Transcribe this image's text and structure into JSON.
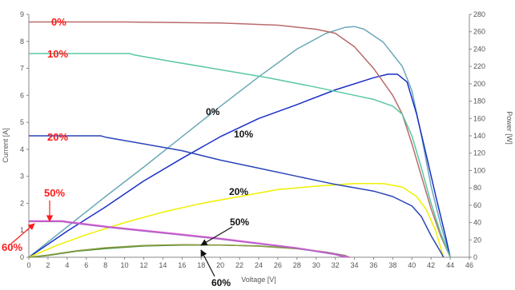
{
  "chart_data": {
    "type": "line",
    "xlabel": "Voltage [V]",
    "ylabel_left": "Current [A]",
    "ylabel_right": "Power [W]",
    "xlim": [
      0,
      46
    ],
    "ylim_left": [
      0,
      9
    ],
    "ylim_right": [
      0,
      280
    ],
    "grid": false,
    "x_ticks": [
      0,
      2,
      4,
      6,
      8,
      10,
      12,
      14,
      16,
      18,
      20,
      22,
      24,
      26,
      28,
      30,
      32,
      34,
      36,
      38,
      40,
      42,
      44,
      46
    ],
    "y_left_ticks": [
      0,
      1,
      2,
      3,
      4,
      5,
      6,
      7,
      8,
      9
    ],
    "y_right_ticks": [
      0,
      20,
      40,
      60,
      80,
      100,
      120,
      140,
      160,
      180,
      200,
      220,
      240,
      260,
      280
    ],
    "current_series": [
      {
        "shading": "0%",
        "color": "#b86a6a",
        "points": [
          [
            0,
            8.72
          ],
          [
            10,
            8.72
          ],
          [
            20,
            8.68
          ],
          [
            26,
            8.6
          ],
          [
            30,
            8.45
          ],
          [
            32,
            8.3
          ],
          [
            34,
            7.8
          ],
          [
            36,
            7.0
          ],
          [
            38,
            6.0
          ],
          [
            39,
            5.3
          ],
          [
            40,
            4.2
          ],
          [
            41,
            3.0
          ],
          [
            42,
            1.8
          ],
          [
            43,
            0.8
          ],
          [
            44,
            0.0
          ]
        ]
      },
      {
        "shading": "10%",
        "color": "#5ac8a0",
        "points": [
          [
            0,
            7.55
          ],
          [
            10.5,
            7.55
          ],
          [
            11,
            7.5
          ],
          [
            15,
            7.25
          ],
          [
            20,
            6.95
          ],
          [
            25,
            6.65
          ],
          [
            30,
            6.3
          ],
          [
            34,
            6.0
          ],
          [
            36,
            5.85
          ],
          [
            38,
            5.6
          ],
          [
            39,
            5.3
          ],
          [
            40,
            4.5
          ],
          [
            41,
            3.3
          ],
          [
            42,
            2.0
          ],
          [
            43,
            0.9
          ],
          [
            44,
            0.0
          ]
        ]
      },
      {
        "shading": "20%",
        "color": "#2a45b8",
        "points": [
          [
            0,
            4.5
          ],
          [
            7.5,
            4.5
          ],
          [
            8,
            4.45
          ],
          [
            12,
            4.2
          ],
          [
            16,
            3.95
          ],
          [
            20,
            3.6
          ],
          [
            24,
            3.3
          ],
          [
            28,
            3.0
          ],
          [
            32,
            2.7
          ],
          [
            36,
            2.45
          ],
          [
            38,
            2.25
          ],
          [
            40,
            1.9
          ],
          [
            41,
            1.5
          ],
          [
            42,
            0.8
          ],
          [
            43,
            0.2
          ],
          [
            43.3,
            0.0
          ]
        ]
      },
      {
        "shading": "50%",
        "color": "#e060d0",
        "points": [
          [
            0,
            1.35
          ],
          [
            3.5,
            1.35
          ],
          [
            4,
            1.32
          ],
          [
            8,
            1.15
          ],
          [
            12,
            1.0
          ],
          [
            16,
            0.85
          ],
          [
            20,
            0.7
          ],
          [
            24,
            0.52
          ],
          [
            28,
            0.35
          ],
          [
            32,
            0.12
          ],
          [
            33.5,
            0.0
          ]
        ]
      },
      {
        "shading": "60%",
        "color": "#b060c8",
        "points": [
          [
            0,
            1.32
          ],
          [
            3.5,
            1.32
          ],
          [
            4,
            1.29
          ],
          [
            8,
            1.12
          ],
          [
            12,
            0.97
          ],
          [
            16,
            0.82
          ],
          [
            20,
            0.67
          ],
          [
            24,
            0.5
          ],
          [
            28,
            0.33
          ],
          [
            32,
            0.1
          ],
          [
            33,
            0.0
          ]
        ]
      }
    ],
    "power_series": [
      {
        "shading": "0%",
        "color": "#6aa8b8",
        "points": [
          [
            0,
            0
          ],
          [
            4,
            35
          ],
          [
            8,
            70
          ],
          [
            12,
            104
          ],
          [
            16,
            139
          ],
          [
            20,
            174
          ],
          [
            24,
            208
          ],
          [
            28,
            240
          ],
          [
            31,
            258
          ],
          [
            33,
            265
          ],
          [
            34,
            266
          ],
          [
            35,
            263
          ],
          [
            37,
            248
          ],
          [
            39,
            220
          ],
          [
            40,
            192
          ],
          [
            41,
            140
          ],
          [
            42,
            82
          ],
          [
            43,
            38
          ],
          [
            44,
            0
          ]
        ]
      },
      {
        "shading": "10%",
        "color": "#1a2fc8",
        "points": [
          [
            0,
            0
          ],
          [
            4,
            30
          ],
          [
            8,
            58
          ],
          [
            12,
            88
          ],
          [
            16,
            114
          ],
          [
            20,
            139
          ],
          [
            24,
            160
          ],
          [
            28,
            176
          ],
          [
            32,
            193
          ],
          [
            36,
            207
          ],
          [
            37.5,
            211
          ],
          [
            38.5,
            211
          ],
          [
            39.5,
            202
          ],
          [
            40.5,
            165
          ],
          [
            41.5,
            118
          ],
          [
            42.5,
            70
          ],
          [
            43.5,
            25
          ],
          [
            44,
            0
          ]
        ]
      },
      {
        "shading": "20%",
        "color": "#f0f000",
        "points": [
          [
            0,
            0
          ],
          [
            3,
            14
          ],
          [
            6,
            26
          ],
          [
            10,
            40
          ],
          [
            14,
            52
          ],
          [
            18,
            62
          ],
          [
            22,
            70
          ],
          [
            26,
            78
          ],
          [
            30,
            82
          ],
          [
            34,
            85
          ],
          [
            37,
            85
          ],
          [
            39,
            81
          ],
          [
            40.5,
            70
          ],
          [
            41.5,
            55
          ],
          [
            42.5,
            30
          ],
          [
            43.3,
            0
          ]
        ]
      },
      {
        "shading": "50%",
        "color": "#3a8a2a",
        "points": [
          [
            0,
            0
          ],
          [
            2,
            2
          ],
          [
            5,
            7
          ],
          [
            8,
            10
          ],
          [
            12,
            13
          ],
          [
            16,
            14
          ],
          [
            20,
            14
          ],
          [
            24,
            13
          ],
          [
            28,
            10
          ],
          [
            31,
            6
          ],
          [
            33,
            2
          ],
          [
            33.5,
            0
          ]
        ]
      },
      {
        "shading": "60%",
        "color": "#8a9a40",
        "points": [
          [
            0,
            0
          ],
          [
            2,
            2.5
          ],
          [
            5,
            7.5
          ],
          [
            8,
            11
          ],
          [
            12,
            13.5
          ],
          [
            16,
            14.5
          ],
          [
            20,
            14.2
          ],
          [
            24,
            12.8
          ],
          [
            28,
            9.8
          ],
          [
            31,
            5.8
          ],
          [
            33,
            1.5
          ],
          [
            33.4,
            0
          ]
        ]
      }
    ],
    "labels": [
      {
        "text": "0%",
        "color": "red"
      },
      {
        "text": "10%",
        "color": "red"
      },
      {
        "text": "20%",
        "color": "red"
      },
      {
        "text": "50%",
        "color": "red"
      },
      {
        "text": "60%",
        "color": "red"
      },
      {
        "text": "0%",
        "color": "black"
      },
      {
        "text": "10%",
        "color": "black"
      },
      {
        "text": "20%",
        "color": "black"
      },
      {
        "text": "50%",
        "color": "black"
      },
      {
        "text": "60%",
        "color": "black"
      }
    ]
  }
}
